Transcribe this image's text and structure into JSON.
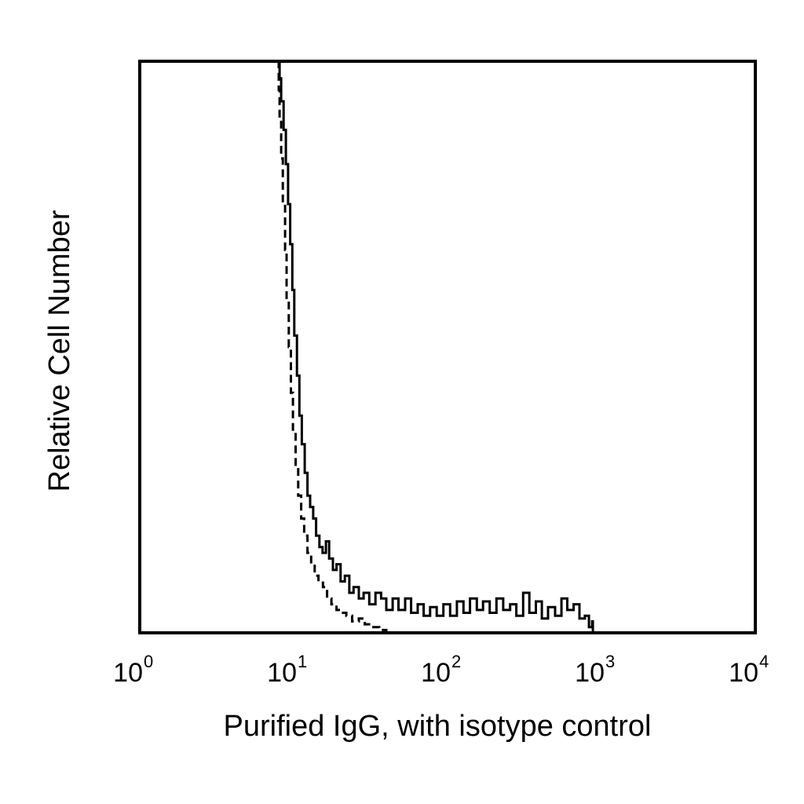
{
  "chart_data": {
    "type": "line",
    "title": "",
    "xlabel": "Purified IgG, with isotype control",
    "ylabel": "Relative Cell Number",
    "x_scale": "log",
    "xlim": [
      1,
      10000
    ],
    "ylim": [
      0,
      100
    ],
    "grid": false,
    "legend": "none",
    "x_ticks": [
      {
        "base": "10",
        "exp": "0"
      },
      {
        "base": "10",
        "exp": "1"
      },
      {
        "base": "10",
        "exp": "2"
      },
      {
        "base": "10",
        "exp": "3"
      },
      {
        "base": "10",
        "exp": "4"
      }
    ],
    "series": [
      {
        "style": "solid",
        "color": "#000000",
        "points": [
          [
            8.0,
            100
          ],
          [
            8.1,
            97
          ],
          [
            8.3,
            93
          ],
          [
            8.6,
            88
          ],
          [
            8.9,
            82
          ],
          [
            9.2,
            75
          ],
          [
            9.5,
            68
          ],
          [
            9.8,
            60
          ],
          [
            10.1,
            52
          ],
          [
            10.5,
            45
          ],
          [
            10.9,
            38
          ],
          [
            11.3,
            33
          ],
          [
            11.8,
            28
          ],
          [
            12.3,
            24
          ],
          [
            12.8,
            22
          ],
          [
            13.4,
            20
          ],
          [
            14.0,
            17
          ],
          [
            14.7,
            15
          ],
          [
            15.4,
            14
          ],
          [
            16.2,
            16
          ],
          [
            17.0,
            13
          ],
          [
            18.0,
            11
          ],
          [
            19.0,
            12
          ],
          [
            20.2,
            9
          ],
          [
            21.5,
            10
          ],
          [
            23.0,
            7
          ],
          [
            24.5,
            8
          ],
          [
            26.5,
            6
          ],
          [
            28.5,
            7
          ],
          [
            31.0,
            5
          ],
          [
            34.0,
            7
          ],
          [
            37.0,
            6
          ],
          [
            40.0,
            4
          ],
          [
            44.0,
            6
          ],
          [
            48.0,
            4
          ],
          [
            53.0,
            6
          ],
          [
            58.0,
            3.5
          ],
          [
            64.0,
            5
          ],
          [
            70.0,
            3
          ],
          [
            77.0,
            4.5
          ],
          [
            85.0,
            3
          ],
          [
            94.0,
            5
          ],
          [
            104.0,
            3
          ],
          [
            115.0,
            5.5
          ],
          [
            127.0,
            3.5
          ],
          [
            140.0,
            6
          ],
          [
            155.0,
            4
          ],
          [
            170.0,
            5.5
          ],
          [
            188.0,
            3.5
          ],
          [
            208.0,
            6
          ],
          [
            230.0,
            4
          ],
          [
            255.0,
            5
          ],
          [
            280.0,
            3
          ],
          [
            310.0,
            7
          ],
          [
            340.0,
            3.5
          ],
          [
            375.0,
            5.5
          ],
          [
            410.0,
            2.5
          ],
          [
            450.0,
            4.5
          ],
          [
            500.0,
            3
          ],
          [
            550.0,
            6
          ],
          [
            600.0,
            4
          ],
          [
            660.0,
            5
          ],
          [
            720.0,
            2.5
          ],
          [
            780.0,
            3
          ],
          [
            830.0,
            1
          ],
          [
            870.0,
            2
          ],
          [
            880.0,
            0
          ]
        ]
      },
      {
        "style": "dashed",
        "color": "#000000",
        "points": [
          [
            7.9,
            100
          ],
          [
            8.0,
            95
          ],
          [
            8.1,
            90
          ],
          [
            8.3,
            83
          ],
          [
            8.5,
            75
          ],
          [
            8.8,
            67
          ],
          [
            9.0,
            58
          ],
          [
            9.3,
            50
          ],
          [
            9.6,
            42
          ],
          [
            9.9,
            35
          ],
          [
            10.3,
            29
          ],
          [
            10.7,
            24
          ],
          [
            11.2,
            20
          ],
          [
            11.7,
            17
          ],
          [
            12.3,
            14
          ],
          [
            13.0,
            12
          ],
          [
            13.7,
            10
          ],
          [
            14.5,
            9
          ],
          [
            15.5,
            8
          ],
          [
            16.5,
            6
          ],
          [
            17.6,
            5
          ],
          [
            19.0,
            4
          ],
          [
            20.5,
            3.5
          ],
          [
            22.0,
            3
          ],
          [
            24.0,
            2
          ],
          [
            26.5,
            2.5
          ],
          [
            29.0,
            1.5
          ],
          [
            32.0,
            1
          ],
          [
            36.0,
            0.5
          ],
          [
            40.0,
            0
          ]
        ]
      }
    ]
  }
}
